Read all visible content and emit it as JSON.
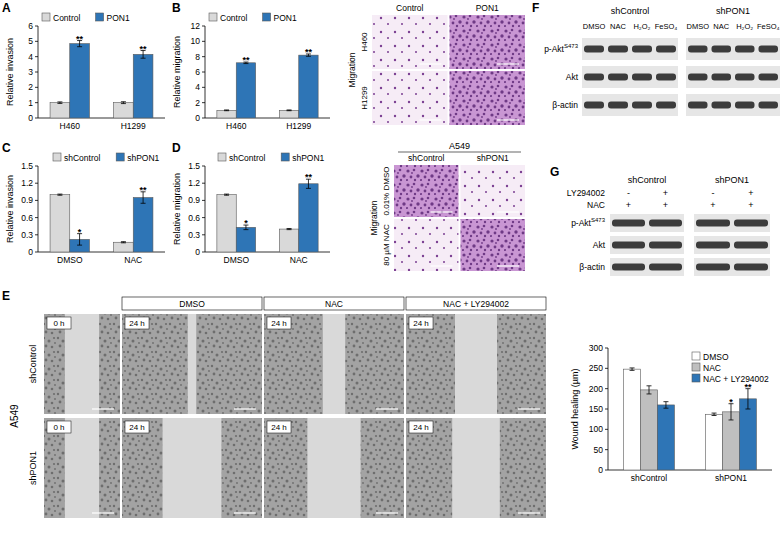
{
  "chart_data": [
    {
      "panel": "A",
      "type": "bar",
      "y_label": "Relative invasion",
      "categories": [
        "H460",
        "H1299"
      ],
      "series": [
        {
          "name": "Control",
          "color": "#d9d9d9",
          "values": [
            1,
            1
          ],
          "errors": [
            0.05,
            0.06
          ],
          "significance": [
            null,
            null
          ]
        },
        {
          "name": "PON1",
          "color": "#2e75b6",
          "values": [
            4.85,
            4.15
          ],
          "errors": [
            0.2,
            0.25
          ],
          "significance": [
            "**",
            "**"
          ]
        }
      ],
      "ylim": [
        0,
        6
      ],
      "yticks": [
        0,
        1,
        2,
        3,
        4,
        5,
        6
      ],
      "legend": "top-left"
    },
    {
      "panel": "B",
      "type": "bar",
      "y_label": "Relative migration",
      "categories": [
        "H460",
        "H1299"
      ],
      "series": [
        {
          "name": "Control",
          "color": "#d9d9d9",
          "values": [
            1,
            1
          ],
          "errors": [
            0.05,
            0.05
          ],
          "significance": [
            null,
            null
          ]
        },
        {
          "name": "PON1",
          "color": "#2e75b6",
          "values": [
            7.2,
            8.2
          ],
          "errors": [
            0.1,
            0.15
          ],
          "significance": [
            "**",
            "**"
          ]
        }
      ],
      "ylim": [
        0,
        12
      ],
      "yticks": [
        0,
        2,
        4,
        6,
        8,
        10,
        12
      ],
      "legend": "top-left"
    },
    {
      "panel": "C",
      "type": "bar",
      "y_label": "Relative invasion",
      "categories": [
        "DMSO",
        "NAC"
      ],
      "series": [
        {
          "name": "shControl",
          "color": "#d9d9d9",
          "values": [
            1,
            0.17
          ],
          "errors": [
            0.01,
            0.01
          ],
          "significance": [
            null,
            null
          ]
        },
        {
          "name": "shPON1",
          "color": "#2e75b6",
          "values": [
            0.22,
            0.95
          ],
          "errors": [
            0.1,
            0.1
          ],
          "significance": [
            "*",
            "**"
          ]
        }
      ],
      "ylim": [
        0,
        1.5
      ],
      "yticks": [
        0,
        0.3,
        0.6,
        0.9,
        1.2,
        1.5
      ],
      "legend": "top-right"
    },
    {
      "panel": "D",
      "type": "bar",
      "y_label": "Relative migration",
      "categories": [
        "DMSO",
        "NAC"
      ],
      "series": [
        {
          "name": "shControl",
          "color": "#d9d9d9",
          "values": [
            1,
            0.4
          ],
          "errors": [
            0.01,
            0.01
          ],
          "significance": [
            null,
            null
          ]
        },
        {
          "name": "shPON1",
          "color": "#2e75b6",
          "values": [
            0.43,
            1.19
          ],
          "errors": [
            0.04,
            0.08
          ],
          "significance": [
            "*",
            "**"
          ]
        }
      ],
      "ylim": [
        0,
        1.5
      ],
      "yticks": [
        0,
        0.3,
        0.6,
        0.9,
        1.2,
        1.5
      ],
      "legend": "top-right"
    },
    {
      "type": "bar",
      "y_label": "Wound healing (µm)",
      "categories": [
        "shControl",
        "shPON1"
      ],
      "series": [
        {
          "name": "DMSO",
          "color": "#ffffff",
          "values": [
            248,
            137
          ],
          "errors": [
            3,
            3
          ],
          "significance": [
            null,
            null
          ]
        },
        {
          "name": "NAC",
          "color": "#bfbfbf",
          "values": [
            197,
            143
          ],
          "errors": [
            10,
            20
          ],
          "significance": [
            null,
            "*"
          ]
        },
        {
          "name": "NAC + LY294002",
          "color": "#2e75b6",
          "values": [
            160,
            175
          ],
          "errors": [
            8,
            25
          ],
          "significance": [
            null,
            "**"
          ]
        }
      ],
      "ylim": [
        0,
        300
      ],
      "yticks": [
        0,
        50,
        100,
        150,
        200,
        250,
        300
      ],
      "legend": "upper-right"
    }
  ],
  "micrographs": [
    {
      "side_label": "Migration",
      "columns": [
        "Control",
        "PON1"
      ],
      "rows": [
        "H460",
        "H1299"
      ]
    },
    {
      "header": "A549",
      "side_label": "Migration",
      "columns": [
        "shControl",
        "shPON1"
      ],
      "rows": [
        "0.01% DMSO",
        "80 µM NAC"
      ]
    },
    {
      "panel": "E",
      "side_label": "A549",
      "columns": [
        "DMSO",
        "NAC",
        "NAC + LY294002"
      ],
      "rows": [
        "shControl",
        "shPON1"
      ],
      "time_start": "0 h",
      "time_end": "24 h"
    }
  ],
  "blots": [
    {
      "panel": "F",
      "groups": [
        "shControl",
        "shPON1"
      ],
      "lanes": [
        "DMSO",
        "NAC",
        "H₂O₂",
        "FeSO₄"
      ],
      "rows": [
        {
          "label": "p-Akt",
          "sup": "S473"
        },
        {
          "label": "Akt"
        },
        {
          "label": "β-actin"
        }
      ]
    },
    {
      "panel": "G",
      "groups": [
        "shControl",
        "shPON1"
      ],
      "treatments": [
        {
          "label": "LY294002",
          "marks": [
            "-",
            "+",
            "-",
            "+"
          ]
        },
        {
          "label": "NAC",
          "marks": [
            "+",
            "+",
            "+",
            "+"
          ]
        }
      ],
      "rows": [
        {
          "label": "p-Akt",
          "sup": "S473"
        },
        {
          "label": "Akt"
        },
        {
          "label": "β-actin"
        }
      ]
    }
  ]
}
